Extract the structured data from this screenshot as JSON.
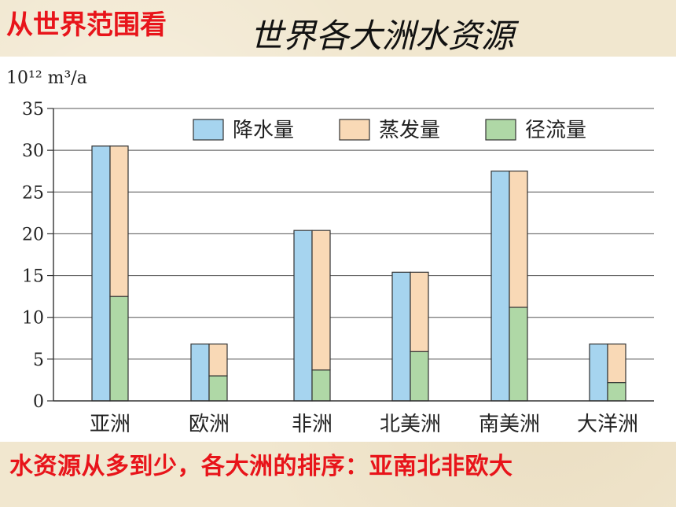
{
  "header": {
    "left_label": "从世界范围看",
    "title": "世界各大洲水资源"
  },
  "footer": {
    "note": "水资源从多到少，各大洲的排序：亚南北非欧大"
  },
  "chart_data": {
    "type": "bar",
    "unit_label": "10¹² m³/a",
    "categories": [
      "亚洲",
      "欧洲",
      "非洲",
      "北美洲",
      "南美洲",
      "大洋洲"
    ],
    "series": [
      {
        "name": "降水量",
        "values": [
          30.5,
          6.8,
          20.4,
          15.4,
          27.5,
          6.8
        ]
      },
      {
        "name": "蒸发量",
        "values": [
          18.0,
          3.8,
          16.7,
          9.5,
          16.3,
          4.6
        ]
      },
      {
        "name": "径流量",
        "values": [
          12.5,
          3.0,
          3.7,
          5.9,
          11.2,
          2.2
        ]
      }
    ],
    "ylim": [
      0,
      35
    ],
    "yticks": [
      0,
      5,
      10,
      15,
      20,
      25,
      30,
      35
    ],
    "grid": true,
    "legend_position": "top-right",
    "colors": {
      "precipitation": "#a6d4ef",
      "evaporation": "#f9d9b6",
      "runoff": "#afd8a6"
    }
  }
}
